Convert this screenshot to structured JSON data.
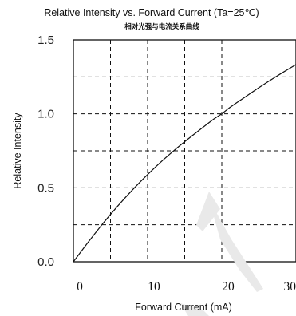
{
  "chart_data": {
    "type": "line",
    "title": "Relative Intensity vs. Forward Current (Ta=25℃)",
    "subtitle": "相对光强与电流关系曲线",
    "xlabel": "Forward Current (mA)",
    "ylabel": "Relative Intensity",
    "xlim": [
      0,
      30
    ],
    "ylim": [
      0,
      1.5
    ],
    "x_ticks": [
      "0",
      "10",
      "20",
      "30"
    ],
    "y_ticks": [
      "0.0",
      "0.5",
      "1.0",
      "1.5"
    ],
    "grid": true,
    "series": [
      {
        "x": [
          0,
          1,
          2,
          3,
          4,
          5,
          6,
          7,
          8,
          9,
          10,
          11,
          12,
          13,
          14,
          15,
          16,
          17,
          18,
          19,
          20,
          21,
          22,
          23,
          24,
          25,
          26,
          27,
          28,
          29,
          30
        ],
        "values": [
          0.0,
          0.067,
          0.133,
          0.197,
          0.26,
          0.32,
          0.378,
          0.434,
          0.488,
          0.54,
          0.59,
          0.638,
          0.684,
          0.728,
          0.771,
          0.812,
          0.852,
          0.891,
          0.93,
          0.968,
          1.0,
          1.04,
          1.075,
          1.109,
          1.143,
          1.177,
          1.21,
          1.242,
          1.273,
          1.303,
          1.333
        ]
      }
    ]
  },
  "watermark": {
    "label": "watermark"
  }
}
